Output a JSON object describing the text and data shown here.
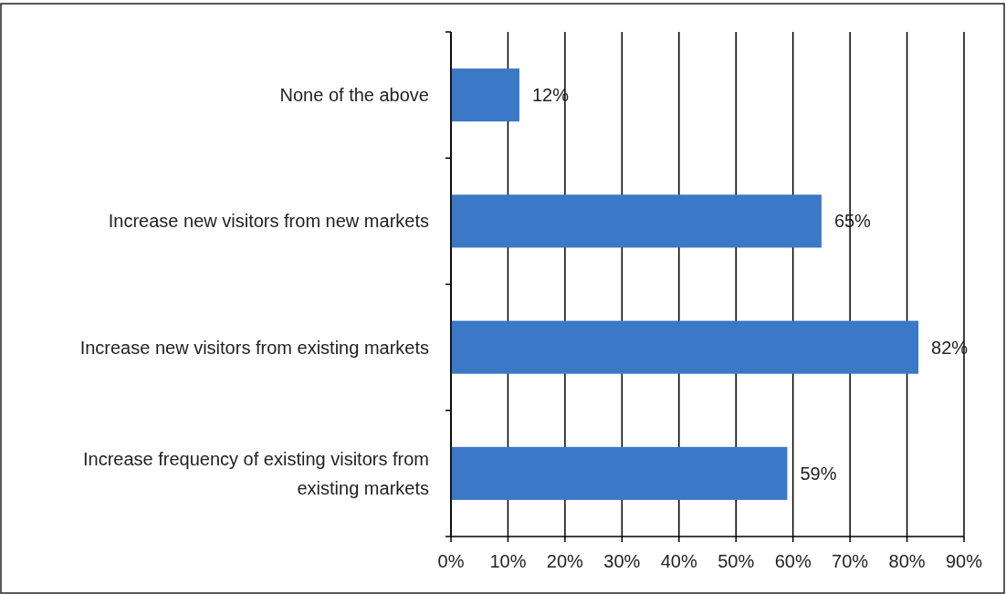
{
  "chart_data": {
    "type": "bar",
    "orientation": "horizontal",
    "categories": [
      "None of the above",
      "Increase new visitors from new markets",
      "Increase new visitors from existing markets",
      "Increase frequency of existing visitors from existing markets"
    ],
    "values": [
      12,
      65,
      82,
      59
    ],
    "value_labels": [
      "12%",
      "65%",
      "82%",
      "59%"
    ],
    "color": "#3b78c6",
    "xlim": [
      0,
      90
    ],
    "xticks": [
      {
        "value": 0,
        "label": "0%"
      },
      {
        "value": 10,
        "label": "10%"
      },
      {
        "value": 20,
        "label": "20%"
      },
      {
        "value": 30,
        "label": "30%"
      },
      {
        "value": 40,
        "label": "40%"
      },
      {
        "value": 50,
        "label": "50%"
      },
      {
        "value": 60,
        "label": "60%"
      },
      {
        "value": 70,
        "label": "70%"
      },
      {
        "value": 80,
        "label": "80%"
      },
      {
        "value": 90,
        "label": "90%"
      }
    ],
    "grid": "x"
  }
}
